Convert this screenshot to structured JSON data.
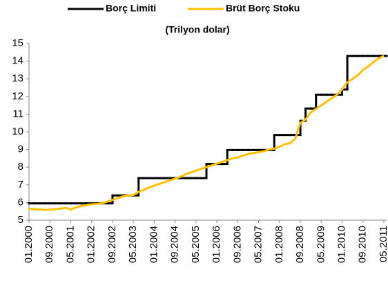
{
  "chart_data": {
    "type": "line",
    "title": "(Trilyon dolar)",
    "legend": "top",
    "categories": [
      "01.2000",
      null,
      null,
      null,
      "09.2000",
      null,
      null,
      null,
      "05.2001",
      null,
      null,
      null,
      "01.2002",
      null,
      null,
      null,
      "09.2002",
      null,
      null,
      null,
      "05.2003",
      null,
      null,
      null,
      "01.2004",
      null,
      null,
      null,
      "09.2004",
      null,
      null,
      null,
      "05.2005",
      null,
      null,
      null,
      "01.2006",
      null,
      null,
      null,
      "09.2006",
      null,
      null,
      null,
      "05.2007",
      null,
      null,
      null,
      "01.2008",
      null,
      null,
      null,
      "09.2008",
      null,
      null,
      null,
      "05.2009",
      null,
      null,
      null,
      "01.2010",
      null,
      null,
      null,
      "09.2010",
      null,
      null,
      null,
      "05.2011"
    ],
    "series": [
      {
        "name": "Borç Limiti",
        "color": "#000000",
        "step": true,
        "values": [
          5.95,
          5.95,
          5.95,
          5.95,
          5.95,
          5.95,
          5.95,
          5.95,
          5.95,
          5.95,
          5.95,
          5.95,
          5.95,
          5.95,
          5.95,
          5.95,
          6.4,
          6.4,
          6.4,
          6.4,
          6.4,
          7.38,
          7.38,
          7.38,
          7.38,
          7.38,
          7.38,
          7.38,
          7.38,
          7.38,
          7.38,
          7.38,
          7.38,
          7.38,
          8.18,
          8.18,
          8.18,
          8.18,
          8.97,
          8.97,
          8.97,
          8.97,
          8.97,
          8.97,
          8.97,
          8.97,
          8.97,
          9.82,
          9.82,
          9.82,
          9.82,
          9.82,
          10.62,
          11.32,
          11.32,
          12.1,
          12.1,
          12.1,
          12.1,
          12.1,
          12.39,
          14.29,
          14.29,
          14.29,
          14.29,
          14.29,
          14.29,
          14.29,
          14.29
        ]
      },
      {
        "name": "Brüt Borç Stoku",
        "color": "#ffc000",
        "values": [
          5.65,
          5.62,
          5.6,
          5.58,
          5.6,
          5.62,
          5.65,
          5.7,
          5.6,
          5.72,
          5.8,
          5.85,
          5.9,
          5.92,
          5.95,
          6.05,
          6.15,
          6.25,
          6.35,
          6.4,
          6.42,
          6.6,
          6.72,
          6.85,
          6.95,
          7.05,
          7.15,
          7.25,
          7.35,
          7.45,
          7.6,
          7.7,
          7.8,
          7.9,
          8.0,
          8.1,
          8.2,
          8.3,
          8.4,
          8.5,
          8.55,
          8.65,
          8.75,
          8.8,
          8.85,
          8.9,
          9.0,
          9.05,
          9.15,
          9.3,
          9.35,
          9.6,
          10.5,
          10.7,
          11.1,
          11.3,
          11.5,
          11.7,
          11.9,
          12.1,
          12.4,
          12.8,
          13.0,
          13.2,
          13.5,
          13.7,
          13.95,
          14.15,
          14.3
        ]
      }
    ],
    "ylim": [
      5,
      15
    ],
    "yticks": [
      5,
      6,
      7,
      8,
      9,
      10,
      11,
      12,
      13,
      14,
      15
    ],
    "grid": false
  }
}
